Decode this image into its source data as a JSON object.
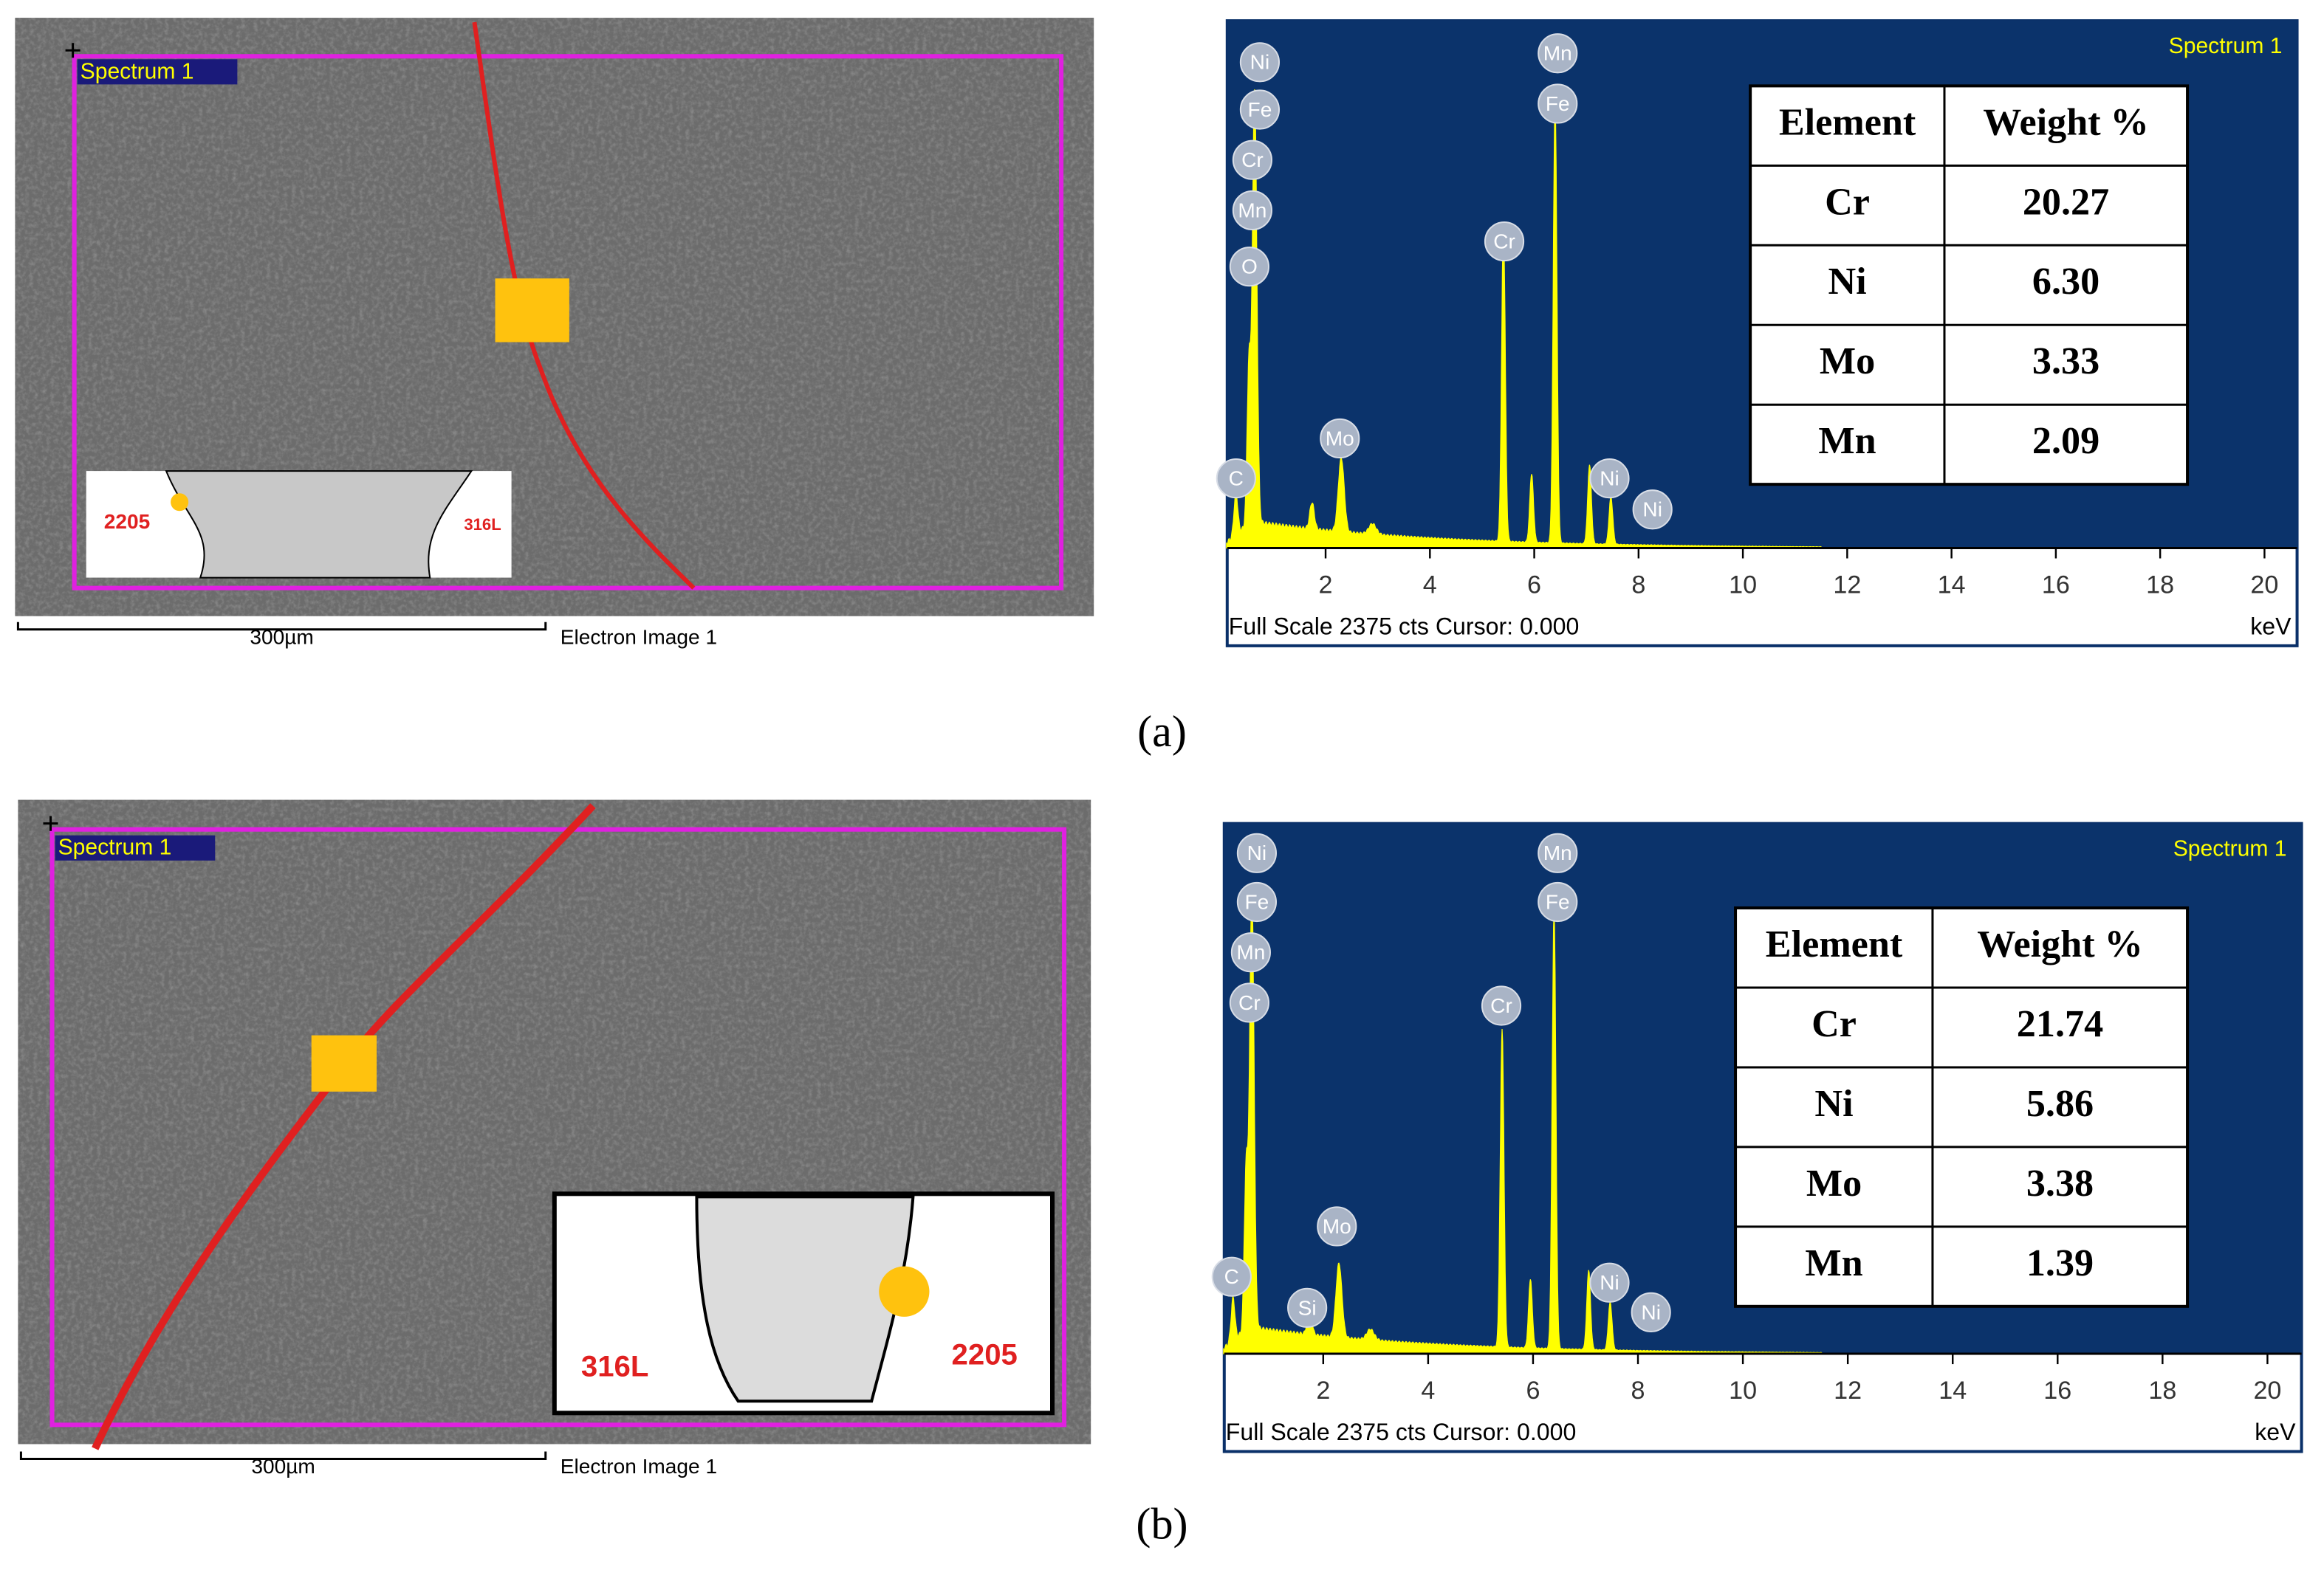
{
  "panels": [
    {
      "label": "(a)",
      "image": {
        "spectrum_label": "Spectrum 1",
        "scale_bar": "300µm",
        "image_name": "Electron Image 1",
        "inset_labels": [
          "2205",
          "316L"
        ]
      },
      "spectrum": {
        "title": "Spectrum 1",
        "peak_labels": [
          "Ni",
          "Fe",
          "Cr",
          "Mn",
          "O",
          "C",
          "Mo",
          "Cr",
          "Mn",
          "Fe",
          "Ni",
          "Ni"
        ],
        "xticks": [
          2,
          4,
          6,
          8,
          10,
          12,
          14,
          16,
          18,
          20
        ],
        "x_unit": "keV",
        "footer": "Full Scale 2375 cts Cursor: 0.000"
      },
      "table": {
        "header": [
          "Element",
          "Weight %"
        ],
        "rows": [
          [
            "Cr",
            "20.27"
          ],
          [
            "Ni",
            "6.30"
          ],
          [
            "Mo",
            "3.33"
          ],
          [
            "Mn",
            "2.09"
          ]
        ]
      }
    },
    {
      "label": "(b)",
      "image": {
        "spectrum_label": "Spectrum 1",
        "scale_bar": "300µm",
        "image_name": "Electron Image 1",
        "inset_labels": [
          "316L",
          "2205"
        ]
      },
      "spectrum": {
        "title": "Spectrum 1",
        "peak_labels": [
          "Ni",
          "Fe",
          "Mn",
          "Cr",
          "C",
          "Si",
          "Mo",
          "Cr",
          "Mn",
          "Fe",
          "Ni",
          "Ni"
        ],
        "xticks": [
          2,
          4,
          6,
          8,
          10,
          12,
          14,
          16,
          18,
          20
        ],
        "x_unit": "keV",
        "footer": "Full Scale 2375 cts Cursor: 0.000"
      },
      "table": {
        "header": [
          "Element",
          "Weight  %"
        ],
        "rows": [
          [
            "Cr",
            "21.74"
          ],
          [
            "Ni",
            "5.86"
          ],
          [
            "Mo",
            "3.38"
          ],
          [
            "Mn",
            "1.39"
          ]
        ]
      }
    }
  ]
}
